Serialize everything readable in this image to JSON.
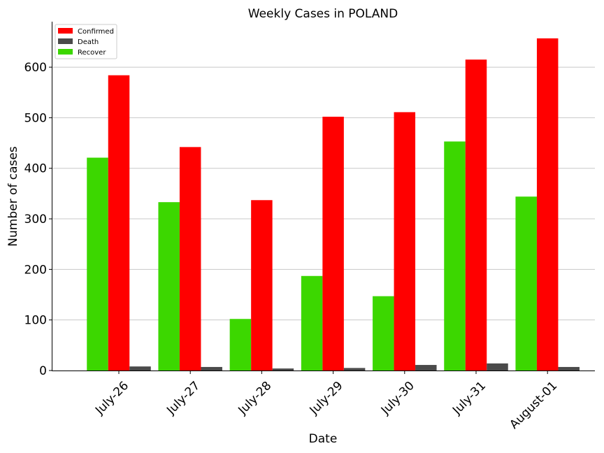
{
  "chart_data": {
    "type": "bar",
    "title": "Weekly Cases in POLAND",
    "xlabel": "Date",
    "ylabel": "Number of cases",
    "categories": [
      "July-26",
      "July-27",
      "July-28",
      "July-29",
      "July-30",
      "July-31",
      "August-01"
    ],
    "series": [
      {
        "name": "Recover",
        "color": "#3cd700",
        "values": [
          421,
          333,
          102,
          187,
          147,
          453,
          344
        ]
      },
      {
        "name": "Confirmed",
        "color": "#ff0000",
        "values": [
          584,
          442,
          337,
          502,
          511,
          615,
          657
        ]
      },
      {
        "name": "Death",
        "color": "#4a4a4a",
        "values": [
          8,
          7,
          4,
          5,
          11,
          14,
          7
        ]
      }
    ],
    "legend_order": [
      "Confirmed",
      "Death",
      "Recover"
    ],
    "ylim": [
      0,
      690
    ],
    "yticks": [
      0,
      100,
      200,
      300,
      400,
      500,
      600
    ],
    "grid": "horizontal",
    "legend_position": "top-left"
  }
}
